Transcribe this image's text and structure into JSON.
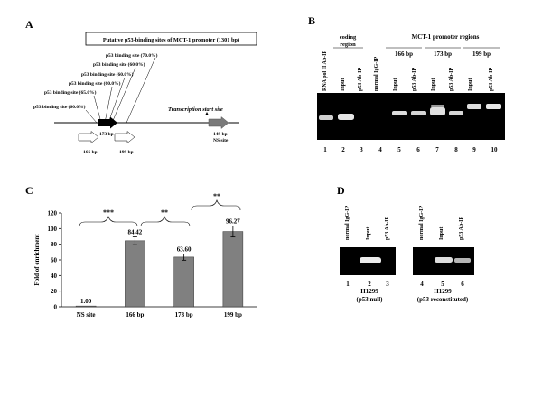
{
  "panels": {
    "A": {
      "letter": "A",
      "box_title": "Putative p53-binding sites of MCT-1 promoter (1301 bp)",
      "sites": [
        "p53 binding site (70.0%)",
        "p53 binding site (60.0%)",
        "p53 binding site (60.0%)",
        "p53 binding site (60.0%)",
        "p53 binding site (65.0%)",
        "p53 binding site (60.0%)"
      ],
      "tss_label": "Transcription start site",
      "label_173": "173 bp",
      "label_166": "166 bp",
      "label_199": "199 bp",
      "label_149": "149 bp",
      "label_ns": "NS site"
    },
    "B": {
      "letter": "B",
      "header_coding": "coding",
      "header_region": "region",
      "header_promoter": "MCT-1 promoter regions",
      "group_166": "166 bp",
      "group_173": "173 bp",
      "group_199": "199 bp",
      "lanes": [
        {
          "label": "RNA pol II Ab-IP",
          "number": "1"
        },
        {
          "label": "Input",
          "number": "2"
        },
        {
          "label": "p53 Ab-IP",
          "number": "3"
        },
        {
          "label": "normal IgG-IP",
          "number": "4"
        },
        {
          "label": "Input",
          "number": "5"
        },
        {
          "label": "p53 Ab-IP",
          "number": "6"
        },
        {
          "label": "Input",
          "number": "7"
        },
        {
          "label": "p53 Ab-IP",
          "number": "8"
        },
        {
          "label": "Input",
          "number": "9"
        },
        {
          "label": "p53 Ab-IP",
          "number": "10"
        }
      ]
    },
    "C": {
      "letter": "C",
      "significance": [
        "***",
        "**",
        "**"
      ]
    },
    "D": {
      "letter": "D",
      "lanes_left": [
        {
          "label": "normal IgG-IP",
          "number": "1"
        },
        {
          "label": "Input",
          "number": "2"
        },
        {
          "label": "p53 Ab-IP",
          "number": "3"
        }
      ],
      "lanes_right": [
        {
          "label": "normal IgG-IP",
          "number": "4"
        },
        {
          "label": "Input",
          "number": "5"
        },
        {
          "label": "p53 Ab-IP",
          "number": "6"
        }
      ],
      "cell_left": "H1299",
      "cond_left": "(p53 null)",
      "cell_right": "H1299",
      "cond_right": "(p53 reconstituted)"
    }
  },
  "chart_data": {
    "type": "bar",
    "categories": [
      "NS site",
      "166 bp",
      "173 bp",
      "199 bp"
    ],
    "values": [
      1.0,
      84.42,
      63.6,
      96.27
    ],
    "value_labels": [
      "1.00",
      "84.42",
      "63.60",
      "96.27"
    ],
    "errors": [
      0.5,
      5,
      4,
      7
    ],
    "ylabel": "Fold of enrichment",
    "ylim": [
      0,
      120
    ],
    "yticks": [
      0,
      20,
      40,
      60,
      80,
      100,
      120
    ],
    "grid": false,
    "bar_color": "#808080"
  }
}
